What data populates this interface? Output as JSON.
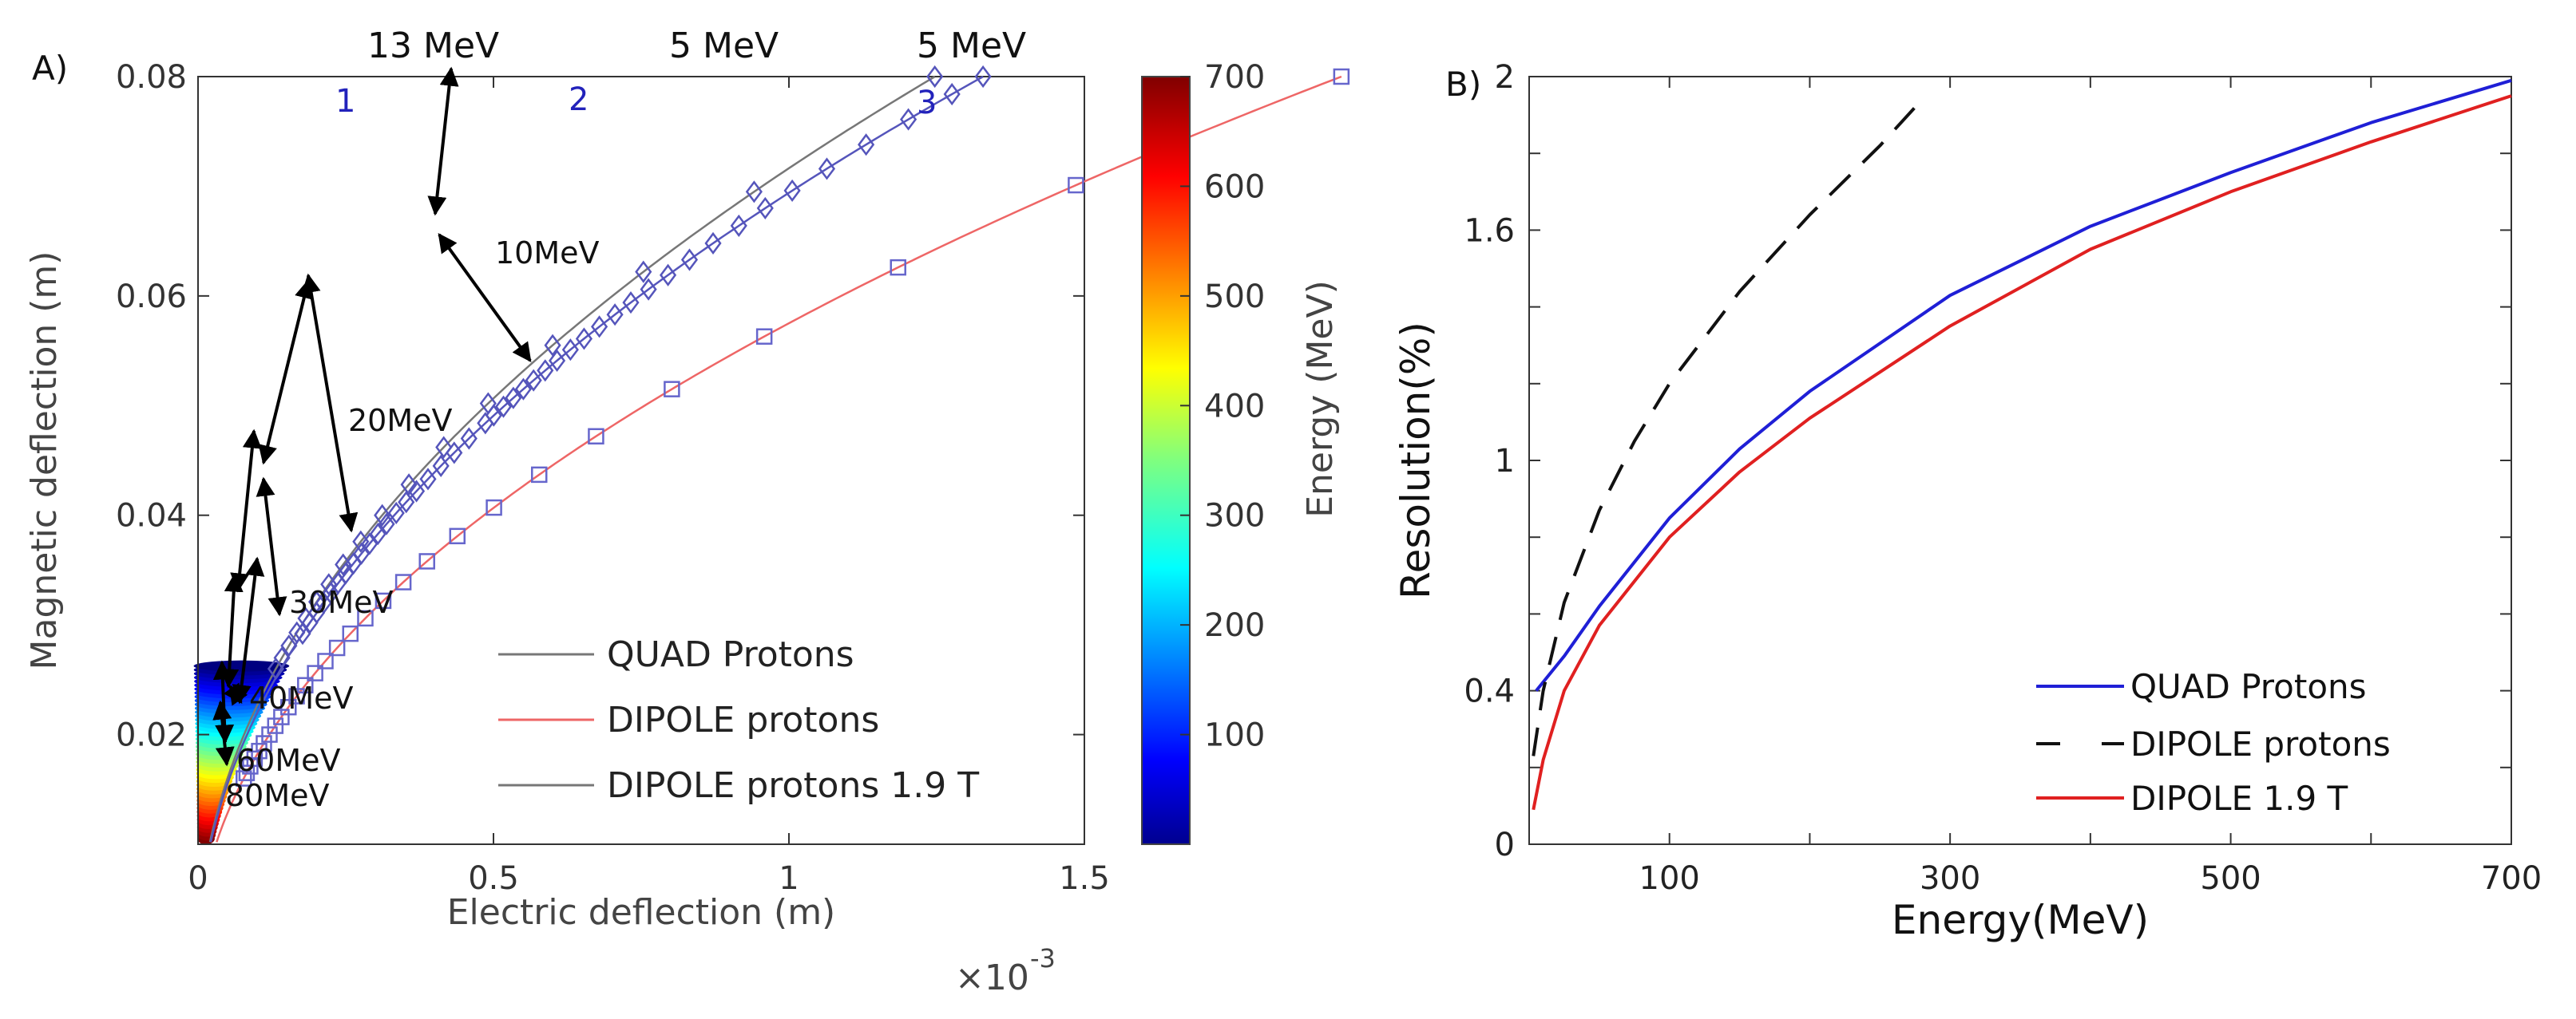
{
  "chart_data": [
    {
      "panel_label": "A)",
      "type": "line",
      "xlabel": "Electric deflection (m)",
      "xscale_label": "×10",
      "xscale_exp": "-3",
      "ylabel": "Magnetic deflection (m)",
      "xlim": [
        0,
        1.5
      ],
      "ylim": [
        0.01,
        0.08
      ],
      "xticks": [
        {
          "v": 0,
          "label": "0"
        },
        {
          "v": 0.5,
          "label": "0.5"
        },
        {
          "v": 1,
          "label": "1"
        },
        {
          "v": 1.5,
          "label": "1.5"
        }
      ],
      "yticks": [
        {
          "v": 0.02,
          "label": "0.02"
        },
        {
          "v": 0.04,
          "label": "0.04"
        },
        {
          "v": 0.06,
          "label": "0.06"
        },
        {
          "v": 0.08,
          "label": "0.08"
        }
      ],
      "series": [
        {
          "name": "QUAD Protons",
          "curve_label": "1",
          "k": 0.0801,
          "color": "#777777",
          "marker": "diamond",
          "top_label": "13 MeV",
          "markers": [
            0.0695,
            0.0622,
            0.0555,
            0.0502,
            0.0462,
            0.0428,
            0.04,
            0.0376,
            0.0355,
            0.0337,
            0.0321,
            0.0306,
            0.0293,
            0.0281,
            0.027,
            0.026
          ]
        },
        {
          "name": "DIPOLE protons",
          "curve_label": "2",
          "k": 0.0776,
          "color": "#5555bb",
          "marker": "diamond",
          "top_label": "5 MeV",
          "markers": [
            0.0784,
            0.0761,
            0.0738,
            0.0716,
            0.0696,
            0.068,
            0.0664,
            0.0648,
            0.0633,
            0.0619,
            0.0606,
            0.0594,
            0.0583,
            0.0572,
            0.0561,
            0.0551,
            0.0541,
            0.0532,
            0.0523,
            0.0515,
            0.0507,
            0.0499,
            0.0491,
            0.0484,
            0.047,
            0.0457,
            0.0445,
            0.0433,
            0.0422,
            0.0412,
            0.0402,
            0.0392,
            0.0383,
            0.0374,
            0.0365,
            0.0356,
            0.0347,
            0.0338,
            0.0329,
            0.032,
            0.0311,
            0.0302,
            0.0292
          ]
        },
        {
          "name": "DIPOLE protons 1.9 T",
          "curve_label": "3",
          "k": 0.0643,
          "color": "#ee6666",
          "marker": "square",
          "top_label": "5 MeV",
          "markers": [
            0.0701,
            0.0626,
            0.0563,
            0.0515,
            0.0472,
            0.0437,
            0.0407,
            0.0381,
            0.0358,
            0.0339,
            0.0322,
            0.0306,
            0.0292,
            0.0279,
            0.0267,
            0.0256,
            0.0245,
            0.0235,
            0.0225,
            0.0216,
            0.0208,
            0.02,
            0.0192,
            0.0185,
            0.0178,
            0.0171,
            0.0165,
            0.016
          ]
        }
      ],
      "colorbar": {
        "label": "Energy (MeV)",
        "range": [
          0,
          700
        ],
        "ticks": [
          "100",
          "200",
          "300",
          "400",
          "500",
          "600",
          "700"
        ]
      },
      "energy_annotations": [
        {
          "text": "10MeV"
        },
        {
          "text": "20MeV"
        },
        {
          "text": "30MeV"
        },
        {
          "text": "40MeV"
        },
        {
          "text": "60MeV"
        },
        {
          "text": "80MeV"
        }
      ],
      "legend_position": "bottom-right"
    },
    {
      "panel_label": "B)",
      "type": "line",
      "xlabel": "Energy(MeV)",
      "ylabel": "Resolution(%)",
      "xlim": [
        0,
        700
      ],
      "ylim": [
        0,
        2
      ],
      "xticks": [
        {
          "v": 100,
          "label": "100"
        },
        {
          "v": 300,
          "label": "300"
        },
        {
          "v": 500,
          "label": "500"
        },
        {
          "v": 700,
          "label": "700"
        }
      ],
      "yticks": [
        {
          "v": 0,
          "label": "0"
        },
        {
          "v": 0.4,
          "label": "0.4"
        },
        {
          "v": 1,
          "label": "1"
        },
        {
          "v": 1.6,
          "label": "1.6"
        },
        {
          "v": 2,
          "label": "2"
        }
      ],
      "series": [
        {
          "name": "QUAD Protons",
          "color": "#1f1fd6",
          "dash": "",
          "x": [
            5,
            25,
            50,
            100,
            150,
            200,
            300,
            400,
            500,
            600,
            700
          ],
          "y": [
            0.4,
            0.49,
            0.62,
            0.85,
            1.03,
            1.18,
            1.43,
            1.61,
            1.75,
            1.88,
            1.99
          ]
        },
        {
          "name": "DIPOLE protons",
          "color": "#111111",
          "dash": "36,22",
          "x": [
            3,
            10,
            25,
            50,
            75,
            100,
            150,
            200,
            250,
            280
          ],
          "y": [
            0.23,
            0.4,
            0.63,
            0.87,
            1.05,
            1.2,
            1.44,
            1.64,
            1.82,
            1.94
          ]
        },
        {
          "name": "DIPOLE 1.9 T",
          "color": "#e02020",
          "dash": "",
          "x": [
            3,
            10,
            25,
            50,
            100,
            150,
            200,
            300,
            400,
            500,
            600,
            700
          ],
          "y": [
            0.09,
            0.22,
            0.4,
            0.57,
            0.8,
            0.97,
            1.11,
            1.35,
            1.55,
            1.7,
            1.83,
            1.95
          ]
        }
      ],
      "legend_position": "bottom-right"
    }
  ]
}
